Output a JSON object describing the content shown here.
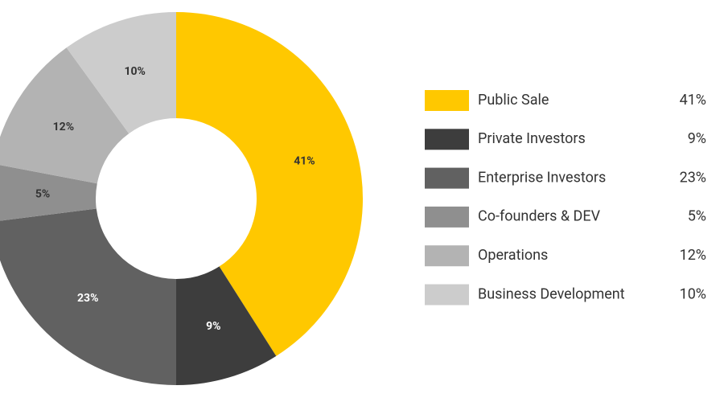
{
  "chart_data": {
    "type": "pie",
    "categories": [
      "Public Sale",
      "Private Investors",
      "Enterprise Investors",
      "Co-founders & DEV",
      "Operations",
      "Business Development"
    ],
    "values": [
      41,
      9,
      23,
      5,
      12,
      10
    ],
    "value_labels": [
      "41%",
      "9%",
      "23%",
      "5%",
      "12%",
      "10%"
    ],
    "colors": [
      "#ffc800",
      "#3d3d3d",
      "#616161",
      "#8f8f8f",
      "#b3b3b3",
      "#cccccc"
    ],
    "donut": true,
    "legend": "right"
  }
}
